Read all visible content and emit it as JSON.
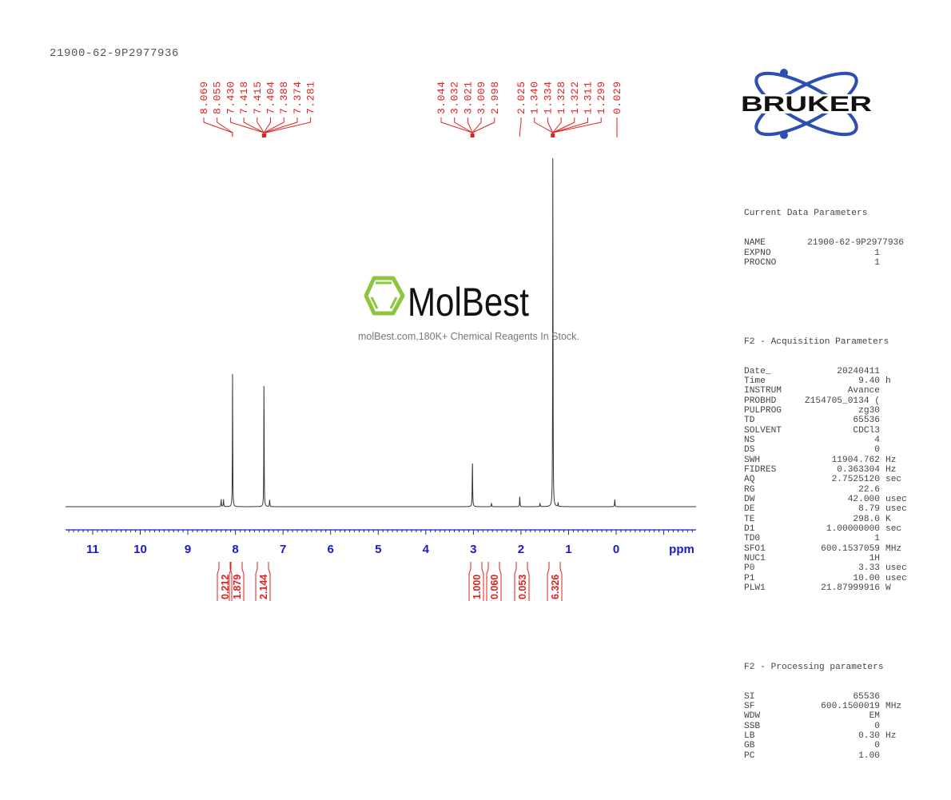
{
  "header": {
    "title": "21900-62-9P2977936"
  },
  "watermark": {
    "brand": "MolBest",
    "tagline": "molBest.com,180K+ Chemical Reagents In Stock.",
    "logo_color": "#8cc63f"
  },
  "logo": {
    "text": "BRUKER",
    "orbit_color": "#2e4fb0",
    "text_color": "#111111"
  },
  "colors": {
    "axis": "#1a1acc",
    "peak_labels": "#dd2222",
    "spectrum": "#333333"
  },
  "params": {
    "current": {
      "heading": "Current Data Parameters",
      "rows": [
        {
          "k": "NAME",
          "v": "21900-62-9P2977936",
          "u": ""
        },
        {
          "k": "EXPNO",
          "v": "1",
          "u": ""
        },
        {
          "k": "PROCNO",
          "v": "1",
          "u": ""
        }
      ]
    },
    "acquisition": {
      "heading": "F2 - Acquisition Parameters",
      "rows": [
        {
          "k": "Date_",
          "v": "20240411",
          "u": ""
        },
        {
          "k": "Time",
          "v": "9.40",
          "u": "h"
        },
        {
          "k": "INSTRUM",
          "v": "Avance",
          "u": ""
        },
        {
          "k": "PROBHD",
          "v": "Z154705_0134 (",
          "u": ""
        },
        {
          "k": "PULPROG",
          "v": "zg30",
          "u": ""
        },
        {
          "k": "TD",
          "v": "65536",
          "u": ""
        },
        {
          "k": "SOLVENT",
          "v": "CDCl3",
          "u": ""
        },
        {
          "k": "NS",
          "v": "4",
          "u": ""
        },
        {
          "k": "DS",
          "v": "0",
          "u": ""
        },
        {
          "k": "SWH",
          "v": "11904.762",
          "u": "Hz"
        },
        {
          "k": "FIDRES",
          "v": "0.363304",
          "u": "Hz"
        },
        {
          "k": "AQ",
          "v": "2.7525120",
          "u": "sec"
        },
        {
          "k": "RG",
          "v": "22.6",
          "u": ""
        },
        {
          "k": "DW",
          "v": "42.000",
          "u": "usec"
        },
        {
          "k": "DE",
          "v": "8.79",
          "u": "usec"
        },
        {
          "k": "TE",
          "v": "298.0",
          "u": "K"
        },
        {
          "k": "D1",
          "v": "1.00000000",
          "u": "sec"
        },
        {
          "k": "TD0",
          "v": "1",
          "u": ""
        },
        {
          "k": "SFO1",
          "v": "600.1537059",
          "u": "MHz"
        },
        {
          "k": "NUC1",
          "v": "1H",
          "u": ""
        },
        {
          "k": "P0",
          "v": "3.33",
          "u": "usec"
        },
        {
          "k": "P1",
          "v": "10.00",
          "u": "usec"
        },
        {
          "k": "PLW1",
          "v": "21.87999916",
          "u": "W"
        }
      ]
    },
    "processing": {
      "heading": "F2 - Processing parameters",
      "rows": [
        {
          "k": "SI",
          "v": "65536",
          "u": ""
        },
        {
          "k": "SF",
          "v": "600.1500019",
          "u": "MHz"
        },
        {
          "k": "WDW",
          "v": "EM",
          "u": ""
        },
        {
          "k": "SSB",
          "v": "0",
          "u": ""
        },
        {
          "k": "LB",
          "v": "0.30",
          "u": "Hz"
        },
        {
          "k": "GB",
          "v": "0",
          "u": ""
        },
        {
          "k": "PC",
          "v": "1.00",
          "u": ""
        }
      ]
    }
  },
  "chart_data": {
    "type": "line",
    "title": "21900-62-9P2977936",
    "xlabel": "ppm",
    "ylabel": "",
    "xlim": [
      11.6,
      -1.7
    ],
    "x_reversed": true,
    "grid": false,
    "x_ticks": [
      "11",
      "10",
      "9",
      "8",
      "7",
      "6",
      "5",
      "4",
      "3",
      "2",
      "1",
      "0"
    ],
    "x_axis_label": "ppm",
    "peak_labels": [
      "8.069",
      "8.055",
      "7.430",
      "7.418",
      "7.415",
      "7.404",
      "7.388",
      "7.374",
      "7.281",
      "3.044",
      "3.032",
      "3.021",
      "3.009",
      "2.998",
      "2.025",
      "1.340",
      "1.334",
      "1.328",
      "1.322",
      "1.311",
      "1.299",
      "0.029"
    ],
    "peaks": [
      {
        "ppm": 8.3,
        "rel_height": 0.02
      },
      {
        "ppm": 8.25,
        "rel_height": 0.02
      },
      {
        "ppm": 8.06,
        "rel_height": 0.37
      },
      {
        "ppm": 7.4,
        "rel_height": 0.37
      },
      {
        "ppm": 7.281,
        "rel_height": 0.02
      },
      {
        "ppm": 3.02,
        "rel_height": 0.13
      },
      {
        "ppm": 2.62,
        "rel_height": 0.01
      },
      {
        "ppm": 2.025,
        "rel_height": 0.03
      },
      {
        "ppm": 1.6,
        "rel_height": 0.01
      },
      {
        "ppm": 1.33,
        "rel_height": 1.0
      },
      {
        "ppm": 1.22,
        "rel_height": 0.01
      },
      {
        "ppm": 0.029,
        "rel_height": 0.02
      }
    ],
    "integrals": [
      {
        "ppm": 8.25,
        "value": "0.212"
      },
      {
        "ppm": 8.06,
        "value": "1.879"
      },
      {
        "ppm": 7.4,
        "value": "2.144"
      },
      {
        "ppm": 3.02,
        "value": "1.000"
      },
      {
        "ppm": 2.7,
        "value": "0.060"
      },
      {
        "ppm": 2.03,
        "value": "0.053"
      },
      {
        "ppm": 1.33,
        "value": "6.326"
      }
    ]
  }
}
